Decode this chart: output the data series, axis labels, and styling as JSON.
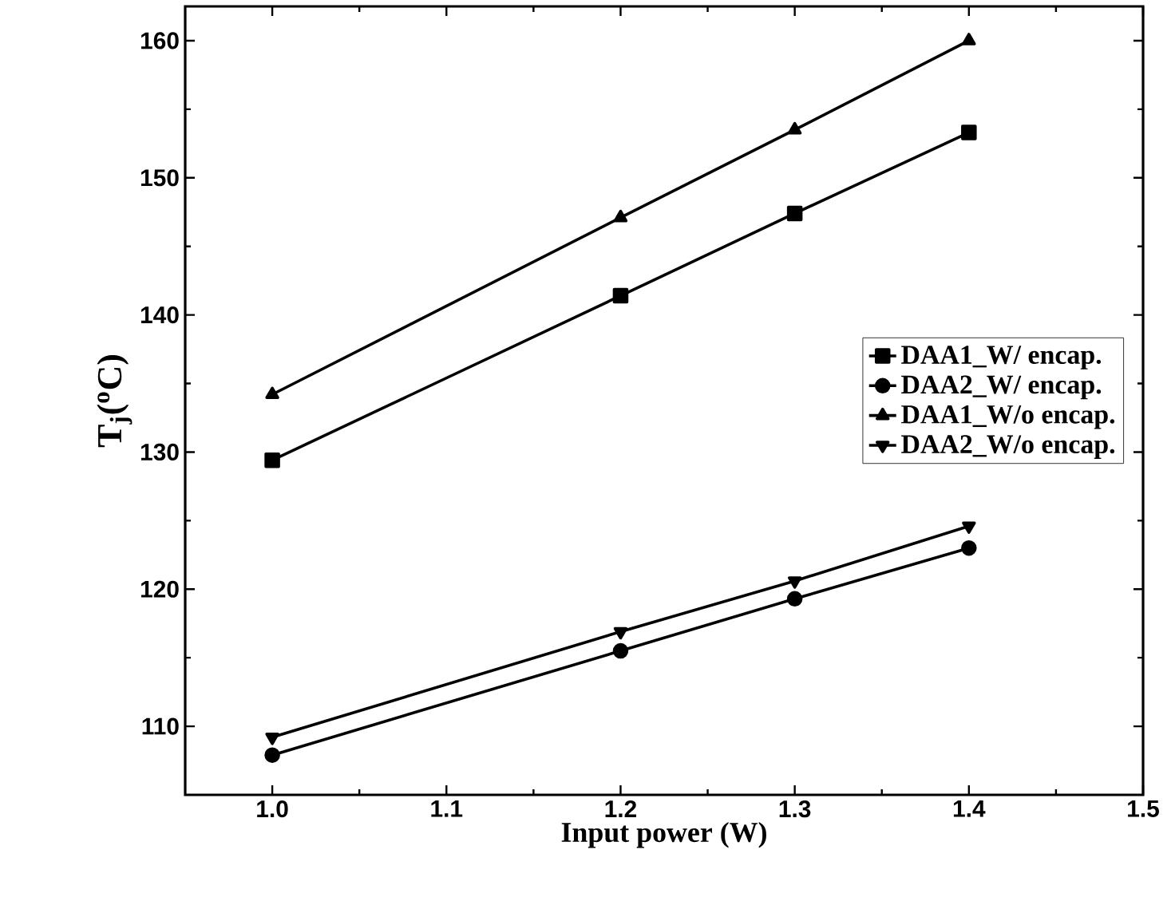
{
  "chart_data": {
    "type": "line",
    "xlabel": "Input power (W)",
    "ylabel": "T$_{j}$($^{o}$C)",
    "x": [
      1.0,
      1.2,
      1.3,
      1.4
    ],
    "series": [
      {
        "name": "DAA1_W/ encap.",
        "color": "#000000",
        "marker": "square",
        "values": [
          129.4,
          141.4,
          147.4,
          153.3
        ]
      },
      {
        "name": "DAA2_W/ encap.",
        "color": "#000000",
        "marker": "circle",
        "values": [
          107.9,
          115.5,
          119.3,
          123.0
        ]
      },
      {
        "name": "DAA1_W/o encap.",
        "color": "#000000",
        "marker": "triangle",
        "values": [
          134.2,
          147.1,
          153.5,
          160.0
        ]
      },
      {
        "name": "DAA2_W/o encap.",
        "color": "#000000",
        "marker": "triangle-down",
        "values": [
          109.2,
          116.9,
          120.6,
          124.6
        ]
      }
    ],
    "xlim": [
      0.95,
      1.5
    ],
    "xticks": [
      {
        "value": 1.0,
        "label": "1.0"
      },
      1.1,
      1.2,
      1.3,
      1.4,
      1.5
    ],
    "ylim": [
      105,
      162.5
    ],
    "yticks": [
      110,
      120,
      130,
      140,
      150,
      160
    ],
    "grid": false,
    "legend": "right",
    "line_style": "solid"
  }
}
